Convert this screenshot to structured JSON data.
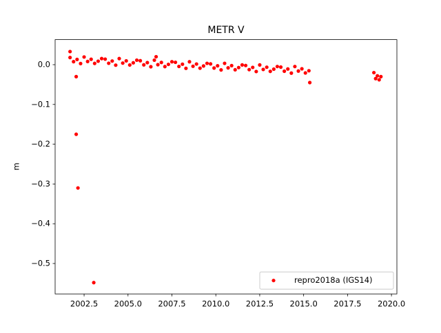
{
  "chart_data": {
    "type": "scatter",
    "title": "METR V",
    "y_label": "m",
    "xlim": [
      2000.85,
      2020.31
    ],
    "ylim": [
      -0.5765,
      0.063
    ],
    "xticks": [
      {
        "value": 2002.5,
        "label": "2002.5"
      },
      {
        "value": 2005.0,
        "label": "2005.0"
      },
      {
        "value": 2007.5,
        "label": "2007.5"
      },
      {
        "value": 2010.0,
        "label": "2010.0"
      },
      {
        "value": 2012.5,
        "label": "2012.5"
      },
      {
        "value": 2015.0,
        "label": "2015.0"
      },
      {
        "value": 2017.5,
        "label": "2017.5"
      },
      {
        "value": 2020.0,
        "label": "2020.0"
      }
    ],
    "yticks": [
      {
        "value": 0.0,
        "label": "0.0"
      },
      {
        "value": -0.1,
        "label": "−0.1"
      },
      {
        "value": -0.2,
        "label": "−0.2"
      },
      {
        "value": -0.3,
        "label": "−0.3"
      },
      {
        "value": -0.4,
        "label": "−0.4"
      },
      {
        "value": -0.5,
        "label": "−0.5"
      }
    ],
    "legend": "lower right",
    "series": [
      {
        "name": "repro2018a (IGS14)",
        "color": "#ff0000",
        "x": [
          2001.7,
          2001.9,
          2002.1,
          2002.3,
          2002.5,
          2002.7,
          2002.9,
          2003.1,
          2003.3,
          2003.5,
          2003.7,
          2003.9,
          2004.1,
          2004.3,
          2004.5,
          2004.7,
          2004.9,
          2005.1,
          2005.3,
          2005.5,
          2005.7,
          2005.9,
          2006.1,
          2006.3,
          2006.5,
          2006.7,
          2006.9,
          2007.1,
          2007.3,
          2007.5,
          2007.7,
          2007.9,
          2008.1,
          2008.3,
          2008.5,
          2008.7,
          2008.9,
          2009.1,
          2009.3,
          2009.5,
          2009.7,
          2009.9,
          2010.1,
          2010.3,
          2010.5,
          2010.7,
          2010.9,
          2011.1,
          2011.3,
          2011.5,
          2011.7,
          2011.9,
          2012.1,
          2012.3,
          2012.5,
          2012.7,
          2012.9,
          2013.1,
          2013.3,
          2013.5,
          2013.7,
          2013.9,
          2014.1,
          2014.3,
          2014.5,
          2014.7,
          2014.9,
          2015.1,
          2015.3,
          2019.0,
          2019.1,
          2019.2,
          2019.3,
          2019.4,
          2002.05,
          2002.15,
          2003.05,
          2002.05,
          2015.35,
          2001.7,
          2006.6
        ],
        "values": [
          0.018,
          0.0076,
          0.0132,
          0.0028,
          0.0194,
          0.008,
          0.0136,
          0.0032,
          0.0088,
          0.0154,
          0.014,
          0.0036,
          0.0092,
          -0.0012,
          0.0154,
          0.004,
          0.0096,
          -0.0008,
          0.0048,
          0.0114,
          0.01,
          -0.0004,
          0.0052,
          -0.0052,
          0.0114,
          0,
          0.0056,
          -0.0048,
          0.0008,
          0.0074,
          0.006,
          -0.0044,
          0.0012,
          -0.0092,
          0.0074,
          -0.004,
          0.0016,
          -0.0088,
          -0.0032,
          0.0034,
          0.002,
          -0.0084,
          -0.0028,
          -0.0132,
          0.0034,
          -0.008,
          -0.0024,
          -0.0128,
          -0.0072,
          -0.0006,
          -0.002,
          -0.0124,
          -0.0068,
          -0.0172,
          -0.0006,
          -0.012,
          -0.0064,
          -0.0168,
          -0.0112,
          -0.0046,
          -0.006,
          -0.0164,
          -0.0108,
          -0.0212,
          -0.0046,
          -0.016,
          -0.0104,
          -0.0208,
          -0.0152,
          -0.02,
          -0.035,
          -0.028,
          -0.038,
          -0.03,
          -0.175,
          -0.31,
          -0.548,
          -0.03,
          -0.045,
          0.033,
          0.02
        ]
      }
    ]
  }
}
